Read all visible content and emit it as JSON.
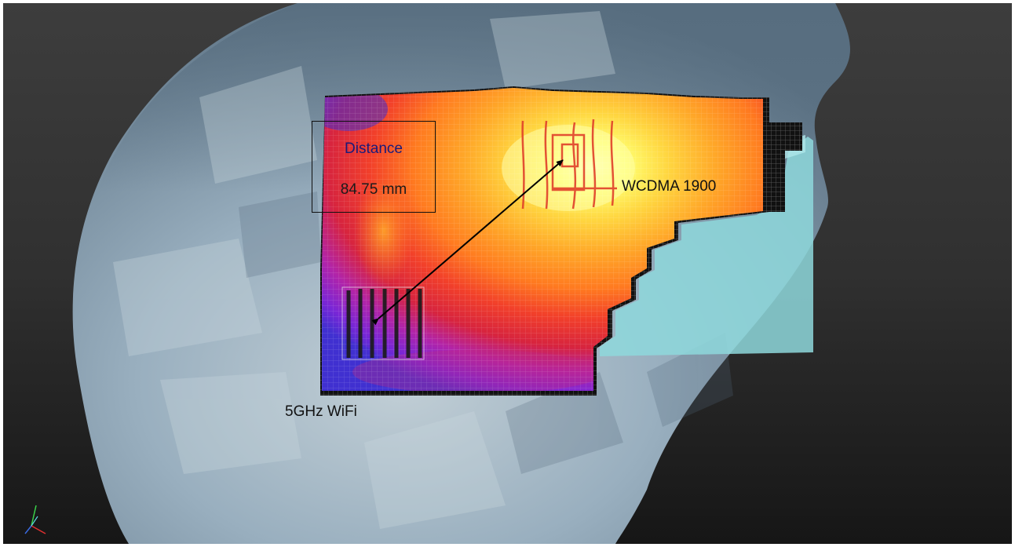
{
  "annotations": {
    "distance_title": "Distance",
    "distance_value": "84.75 mm",
    "label_wcdma": "WCDMA 1900",
    "label_wifi": "5GHz WiFi"
  },
  "colors": {
    "background": "#2b2b2b",
    "phantom": "#8aa3b5",
    "hot": "#ffff80",
    "cold": "#4a3ad0",
    "light_panel": "#8ed8dc"
  },
  "icons": {
    "axis_triad": "axis-triad-icon",
    "distance_arrow": "double-arrow"
  }
}
